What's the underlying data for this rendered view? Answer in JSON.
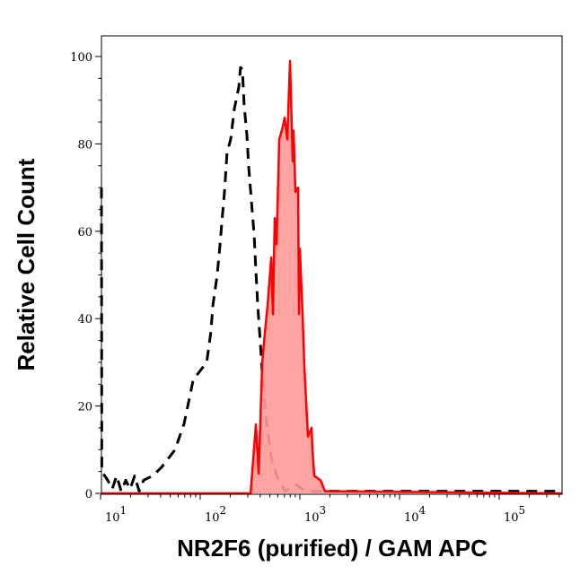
{
  "chart_data": {
    "type": "area",
    "title": "",
    "xlabel": "NR2F6 (purified) / GAM APC",
    "ylabel": "Relative Cell Count",
    "xscale": "log",
    "xlim": [
      10,
      426000
    ],
    "ylim": [
      0,
      100
    ],
    "grid": false,
    "legend": "none",
    "x_ticks": [
      {
        "base": "10",
        "exp": "1",
        "value": 10
      },
      {
        "base": "10",
        "exp": "2",
        "value": 100
      },
      {
        "base": "10",
        "exp": "3",
        "value": 1000
      },
      {
        "base": "10",
        "exp": "4",
        "value": 10000
      },
      {
        "base": "10",
        "exp": "5",
        "value": 100000
      }
    ],
    "y_ticks": [
      "0",
      "20",
      "40",
      "60",
      "80",
      "100"
    ],
    "series": [
      {
        "style": "dashed",
        "color": "#000000",
        "fill": "none",
        "x": [
          10.2,
          10.3,
          11.8,
          13.1,
          14.5,
          16.1,
          17.9,
          19.8,
          22,
          24.4,
          27,
          33.3,
          41,
          56,
          69,
          85,
          116,
          128,
          134,
          148,
          158,
          165,
          175,
          186,
          202,
          220,
          244,
          254,
          265,
          276,
          294,
          306,
          326,
          348,
          362,
          378,
          402,
          428,
          465,
          516,
          608,
          718,
          920,
          1132,
          426000
        ],
        "y": [
          70,
          5,
          3,
          1,
          4,
          0.5,
          3,
          1,
          4,
          0.5,
          3,
          4,
          6,
          10,
          16,
          26,
          30,
          37,
          43,
          50,
          57,
          62,
          69,
          78,
          81,
          88,
          93,
          97.5,
          97,
          89,
          82,
          75,
          67,
          59,
          51,
          43,
          34,
          24,
          16,
          8,
          3,
          0.5,
          2,
          0.5,
          0.5
        ]
      },
      {
        "style": "solid",
        "color": "#ff0000",
        "fill": "#ff9999",
        "x": [
          10,
          320,
          362,
          386,
          419,
          446,
          474,
          516,
          537,
          560,
          583,
          621,
          675,
          703,
          748,
          796,
          847,
          865,
          902,
          959,
          980,
          1000,
          1064,
          1109,
          1205,
          1309,
          1337,
          1393,
          1611,
          1786,
          426000
        ],
        "y": [
          0,
          0,
          15.8,
          4.5,
          30,
          37,
          43,
          54,
          41,
          63,
          57,
          81,
          84,
          86,
          81,
          99,
          76,
          83,
          69,
          70,
          41,
          56,
          41,
          29,
          13,
          15,
          10,
          4,
          3,
          0.5,
          0
        ]
      }
    ]
  }
}
